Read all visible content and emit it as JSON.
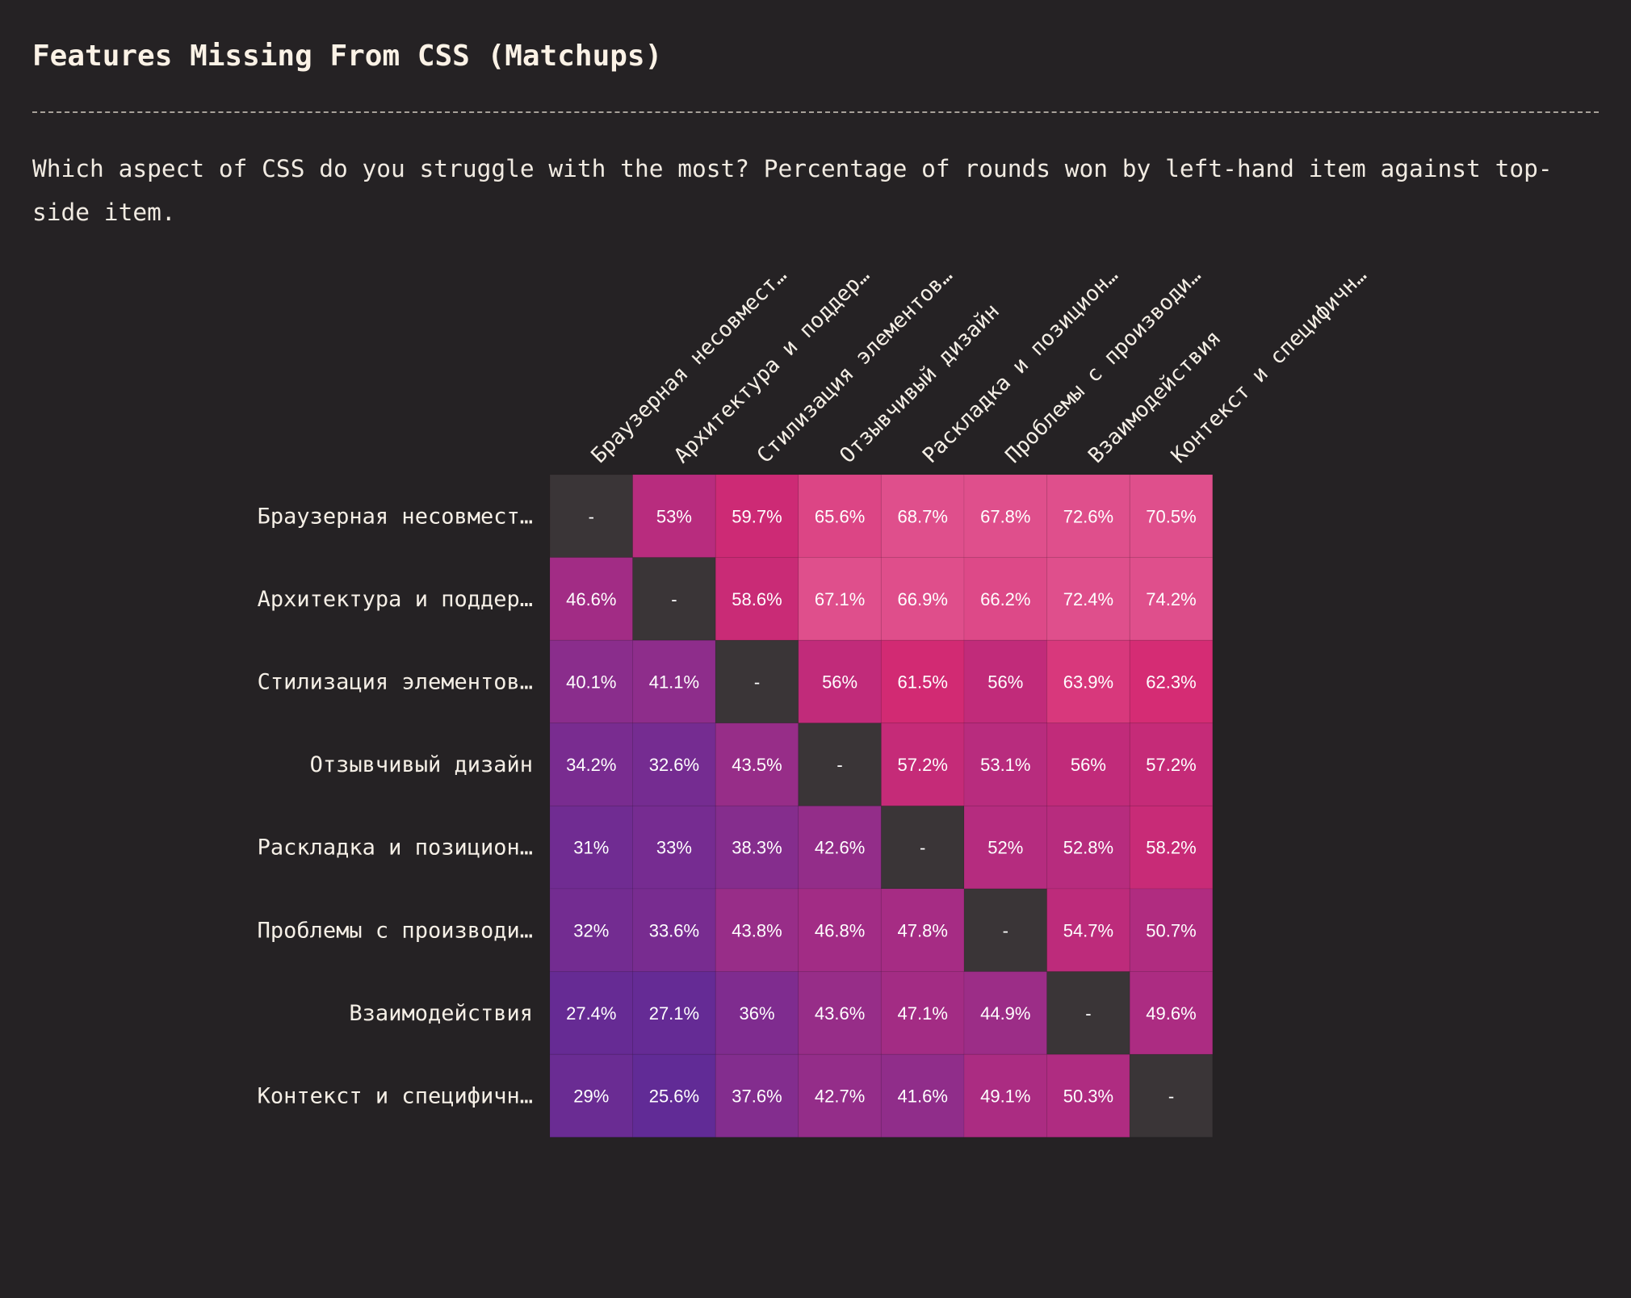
{
  "page": {
    "title": "Features Missing From CSS (Matchups)",
    "subtitle": "Which aspect of CSS do you struggle with the most? Percentage of rounds won by left-hand item against top-side item."
  },
  "chart_data": {
    "type": "heatmap",
    "title": "Features Missing From CSS (Matchups)",
    "subtitle": "Which aspect of CSS do you struggle with the most? Percentage of rounds won by left-hand item against top-side item.",
    "row_labels": [
      "Браузерная несовмест…",
      "Архитектура и поддер…",
      "Стилизация элементов…",
      "Отзывчивый дизайн",
      "Раскладка и позицион…",
      "Проблемы с производи…",
      "Взаимодействия",
      "Контекст и специфичн…"
    ],
    "column_labels": [
      "Браузерная несовмест…",
      "Архитектура и поддер…",
      "Стилизация элементов…",
      "Отзывчивый дизайн",
      "Раскладка и позицион…",
      "Проблемы с производи…",
      "Взаимодействия",
      "Контекст и специфичн…"
    ],
    "values": [
      [
        null,
        53,
        59.7,
        65.6,
        68.7,
        67.8,
        72.6,
        70.5
      ],
      [
        46.6,
        null,
        58.6,
        67.1,
        66.9,
        66.2,
        72.4,
        74.2
      ],
      [
        40.1,
        41.1,
        null,
        56,
        61.5,
        56,
        63.9,
        62.3
      ],
      [
        34.2,
        32.6,
        43.5,
        null,
        57.2,
        53.1,
        56,
        57.2
      ],
      [
        31,
        33,
        38.3,
        42.6,
        null,
        52,
        52.8,
        58.2
      ],
      [
        32,
        33.6,
        43.8,
        46.8,
        47.8,
        null,
        54.7,
        50.7
      ],
      [
        27.4,
        27.1,
        36,
        43.6,
        47.1,
        44.9,
        null,
        49.6
      ],
      [
        29,
        25.6,
        37.6,
        42.7,
        41.6,
        49.1,
        50.3,
        null
      ]
    ],
    "empty_cell_label": "-",
    "value_suffix": "%",
    "colors": {
      "diagonal": "#3a3537",
      "low": "#5f2b96",
      "mid_low": "#8a2d8c",
      "mid": "#b52c7f",
      "mid_high": "#d42a72",
      "high": "#df4f8c"
    }
  }
}
